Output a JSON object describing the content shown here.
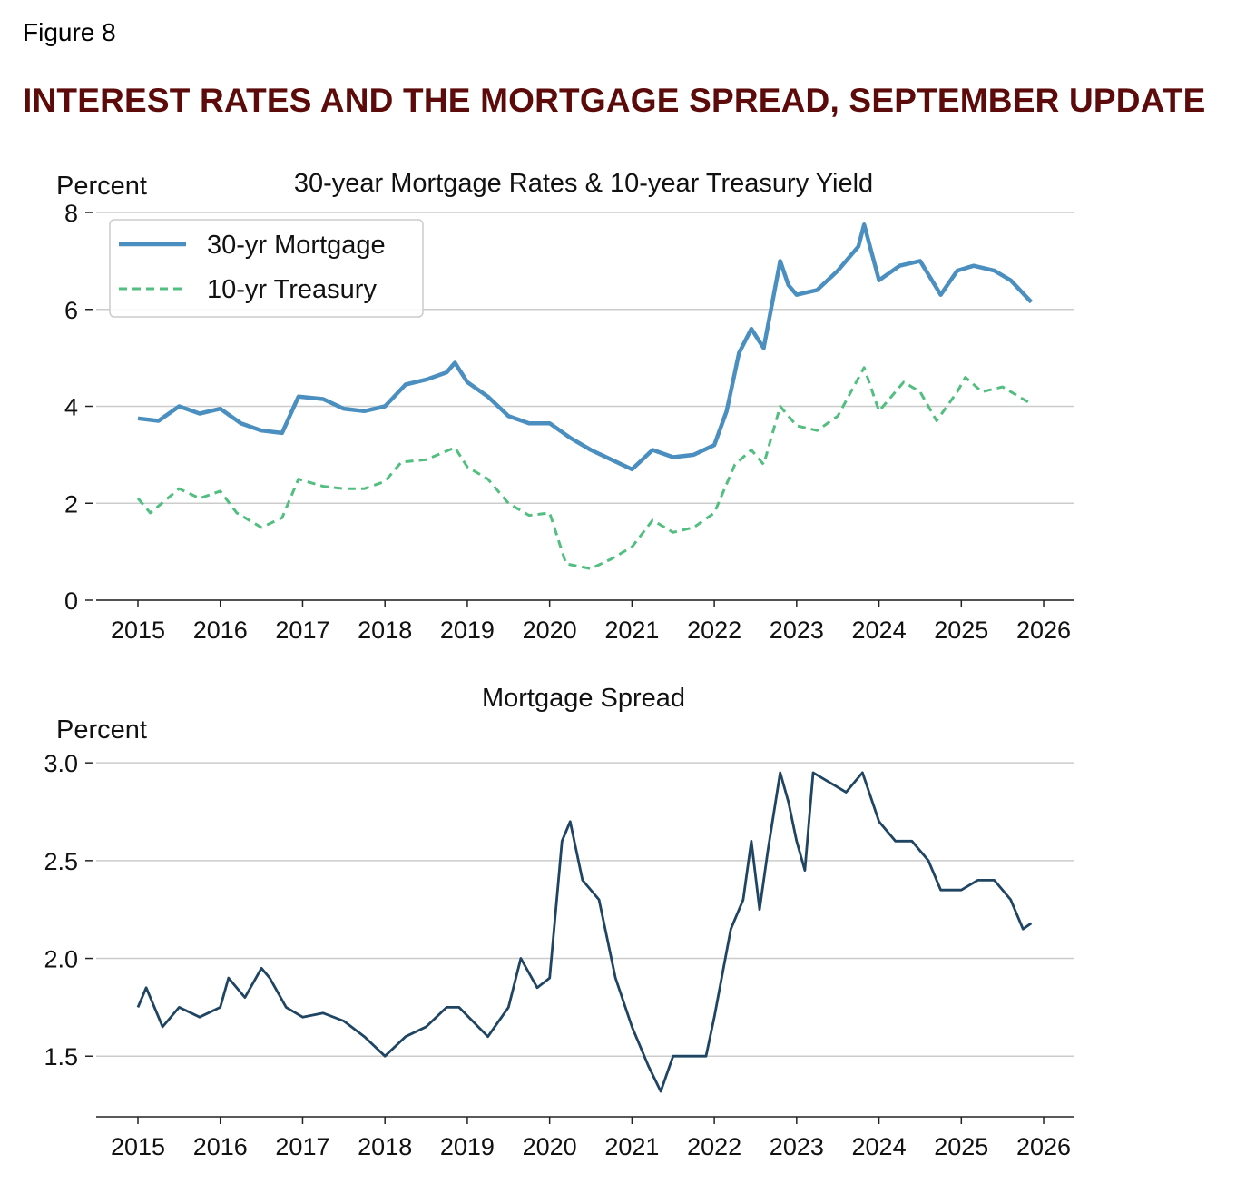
{
  "figure_label": "Figure 8",
  "title": "INTEREST RATES AND THE MORTGAGE SPREAD, SEPTEMBER UPDATE",
  "colors": {
    "title": "#5c0a0a",
    "mortgage": "#4a8fbf",
    "treasury": "#52be80",
    "spread": "#1f4563",
    "grid": "#cccccc"
  },
  "chart_data": [
    {
      "type": "line",
      "title": "30-year Mortgage Rates & 10-year Treasury Yield",
      "ylabel": "Percent",
      "xlim": [
        2014.4,
        2026.4
      ],
      "ylim": [
        0,
        8
      ],
      "xticks": [
        2015,
        2016,
        2017,
        2018,
        2019,
        2020,
        2021,
        2022,
        2023,
        2024,
        2025,
        2026
      ],
      "yticks": [
        0,
        2,
        4,
        6,
        8
      ],
      "grid": "horizontal",
      "legend": "top-left",
      "series": [
        {
          "name": "30-yr Mortgage",
          "style": "solid",
          "x": [
            2015.0,
            2015.25,
            2015.5,
            2015.75,
            2016.0,
            2016.25,
            2016.5,
            2016.75,
            2016.95,
            2017.25,
            2017.5,
            2017.75,
            2018.0,
            2018.25,
            2018.5,
            2018.75,
            2018.85,
            2019.0,
            2019.25,
            2019.5,
            2019.75,
            2020.0,
            2020.25,
            2020.5,
            2020.75,
            2021.0,
            2021.25,
            2021.5,
            2021.75,
            2022.0,
            2022.15,
            2022.3,
            2022.45,
            2022.6,
            2022.8,
            2022.9,
            2023.0,
            2023.25,
            2023.5,
            2023.75,
            2023.82,
            2024.0,
            2024.25,
            2024.5,
            2024.75,
            2024.95,
            2025.15,
            2025.4,
            2025.6,
            2025.85
          ],
          "values": [
            3.75,
            3.7,
            4.0,
            3.85,
            3.95,
            3.65,
            3.5,
            3.45,
            4.2,
            4.15,
            3.95,
            3.9,
            4.0,
            4.45,
            4.55,
            4.7,
            4.9,
            4.5,
            4.2,
            3.8,
            3.65,
            3.65,
            3.35,
            3.1,
            2.9,
            2.7,
            3.1,
            2.95,
            3.0,
            3.2,
            3.9,
            5.1,
            5.6,
            5.2,
            7.0,
            6.5,
            6.3,
            6.4,
            6.8,
            7.3,
            7.75,
            6.6,
            6.9,
            7.0,
            6.3,
            6.8,
            6.9,
            6.8,
            6.6,
            6.15
          ]
        },
        {
          "name": "10-yr Treasury",
          "style": "dashed",
          "x": [
            2015.0,
            2015.15,
            2015.5,
            2015.75,
            2016.0,
            2016.2,
            2016.5,
            2016.75,
            2016.95,
            2017.25,
            2017.5,
            2017.75,
            2018.0,
            2018.2,
            2018.5,
            2018.85,
            2019.0,
            2019.25,
            2019.5,
            2019.75,
            2020.0,
            2020.2,
            2020.5,
            2020.75,
            2021.0,
            2021.25,
            2021.5,
            2021.75,
            2022.0,
            2022.25,
            2022.45,
            2022.6,
            2022.8,
            2023.0,
            2023.25,
            2023.5,
            2023.82,
            2024.0,
            2024.3,
            2024.5,
            2024.7,
            2024.95,
            2025.05,
            2025.25,
            2025.5,
            2025.85
          ],
          "values": [
            2.1,
            1.8,
            2.3,
            2.1,
            2.25,
            1.8,
            1.5,
            1.7,
            2.5,
            2.35,
            2.3,
            2.3,
            2.45,
            2.85,
            2.9,
            3.15,
            2.75,
            2.5,
            2.0,
            1.75,
            1.8,
            0.75,
            0.65,
            0.85,
            1.1,
            1.65,
            1.4,
            1.5,
            1.8,
            2.8,
            3.1,
            2.8,
            4.0,
            3.6,
            3.5,
            3.8,
            4.8,
            3.9,
            4.5,
            4.3,
            3.7,
            4.3,
            4.6,
            4.3,
            4.4,
            4.05
          ]
        }
      ]
    },
    {
      "type": "line",
      "title": "Mortgage Spread",
      "ylabel": "Percent",
      "xlim": [
        2014.4,
        2026.4
      ],
      "ylim": [
        1.19,
        3.14
      ],
      "xticks": [
        2015,
        2016,
        2017,
        2018,
        2019,
        2020,
        2021,
        2022,
        2023,
        2024,
        2025,
        2026
      ],
      "yticks": [
        "1.5",
        "2.0",
        "2.5",
        "3.0"
      ],
      "grid": "horizontal",
      "series": [
        {
          "style": "solid",
          "x": [
            2015.0,
            2015.1,
            2015.3,
            2015.5,
            2015.75,
            2016.0,
            2016.1,
            2016.3,
            2016.5,
            2016.6,
            2016.8,
            2017.0,
            2017.25,
            2017.5,
            2017.75,
            2018.0,
            2018.25,
            2018.5,
            2018.75,
            2018.9,
            2019.25,
            2019.5,
            2019.65,
            2019.85,
            2020.0,
            2020.15,
            2020.25,
            2020.4,
            2020.6,
            2020.8,
            2021.0,
            2021.2,
            2021.35,
            2021.5,
            2021.75,
            2021.9,
            2022.0,
            2022.2,
            2022.35,
            2022.45,
            2022.55,
            2022.65,
            2022.8,
            2022.9,
            2023.0,
            2023.1,
            2023.2,
            2023.4,
            2023.6,
            2023.8,
            2024.0,
            2024.2,
            2024.4,
            2024.6,
            2024.75,
            2025.0,
            2025.2,
            2025.4,
            2025.6,
            2025.75,
            2025.85
          ],
          "values": [
            1.75,
            1.85,
            1.65,
            1.75,
            1.7,
            1.75,
            1.9,
            1.8,
            1.95,
            1.9,
            1.75,
            1.7,
            1.72,
            1.68,
            1.6,
            1.5,
            1.6,
            1.65,
            1.75,
            1.75,
            1.6,
            1.75,
            2.0,
            1.85,
            1.9,
            2.6,
            2.7,
            2.4,
            2.3,
            1.9,
            1.65,
            1.45,
            1.32,
            1.5,
            1.5,
            1.5,
            1.7,
            2.15,
            2.3,
            2.6,
            2.25,
            2.55,
            2.95,
            2.8,
            2.6,
            2.45,
            2.95,
            2.9,
            2.85,
            2.95,
            2.7,
            2.6,
            2.6,
            2.5,
            2.35,
            2.35,
            2.4,
            2.4,
            2.3,
            2.15,
            2.18
          ]
        }
      ]
    }
  ]
}
